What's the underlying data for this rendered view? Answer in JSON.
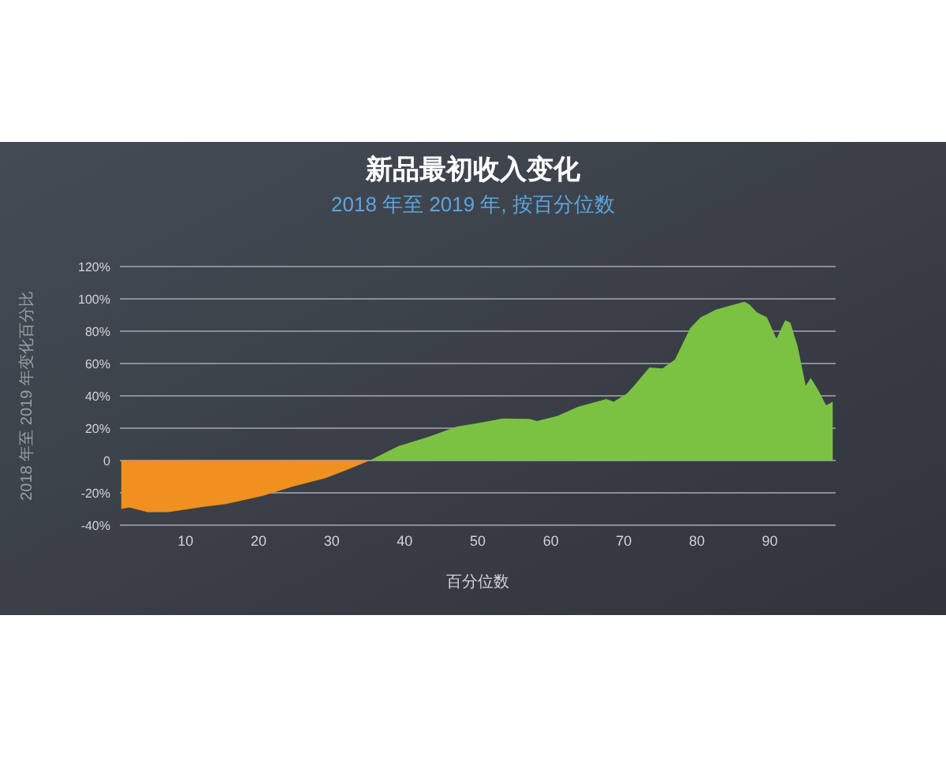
{
  "chart_data": {
    "type": "area",
    "title": "新品最初收入变化",
    "subtitle": "2018 年至 2019 年, 按百分位数",
    "xlabel": "百分位数",
    "ylabel": "2018 年至 2019 年变化百分比",
    "xlim": [
      1,
      99
    ],
    "ylim": [
      -40,
      120
    ],
    "xticks": [
      10,
      20,
      30,
      40,
      50,
      60,
      70,
      80,
      90
    ],
    "yticks": [
      {
        "value": -40,
        "label": "-40%"
      },
      {
        "value": -20,
        "label": "-20%"
      },
      0,
      {
        "value": 20,
        "label": "20%"
      },
      {
        "value": 40,
        "label": "40%"
      },
      {
        "value": 60,
        "label": "60%"
      },
      {
        "value": 80,
        "label": "80%"
      },
      {
        "value": 100,
        "label": "100%"
      },
      {
        "value": 120,
        "label": "120%"
      }
    ],
    "grid": "y",
    "series": [
      {
        "color": "#f0901e",
        "x": [
          1.2,
          2.3,
          4.8,
          7.6,
          11.9,
          15.5,
          20.5,
          24.8,
          29.1,
          32,
          35.2
        ],
        "values": [
          -30,
          -29,
          -32,
          -32,
          -29,
          -27,
          -22,
          -16,
          -11,
          -6,
          0
        ]
      },
      {
        "color": "#7cc242",
        "x": [
          35.2,
          39.2,
          43.5,
          47.1,
          50.4,
          53.4,
          57.1,
          58.1,
          60.9,
          63.7,
          67.6,
          68.6,
          70.4,
          71.4,
          73.5,
          75.3,
          77,
          79.1,
          80.5,
          82.6,
          84.7,
          86.5,
          87.2,
          88.2,
          89.6,
          90.9,
          92.1,
          92.8,
          93.8,
          94.9,
          95.6,
          96.7,
          97.7,
          98.6
        ],
        "values": [
          0,
          9,
          15,
          21,
          23.4,
          26,
          25.7,
          24.4,
          27.6,
          33.2,
          38,
          36.4,
          41.3,
          46.2,
          57.6,
          56.9,
          62.4,
          82,
          88.5,
          93.3,
          96,
          98.2,
          96.6,
          91.7,
          88.5,
          75.4,
          86.8,
          85.2,
          70.6,
          46.2,
          51.1,
          42.9,
          34.1,
          36.4
        ]
      }
    ]
  }
}
